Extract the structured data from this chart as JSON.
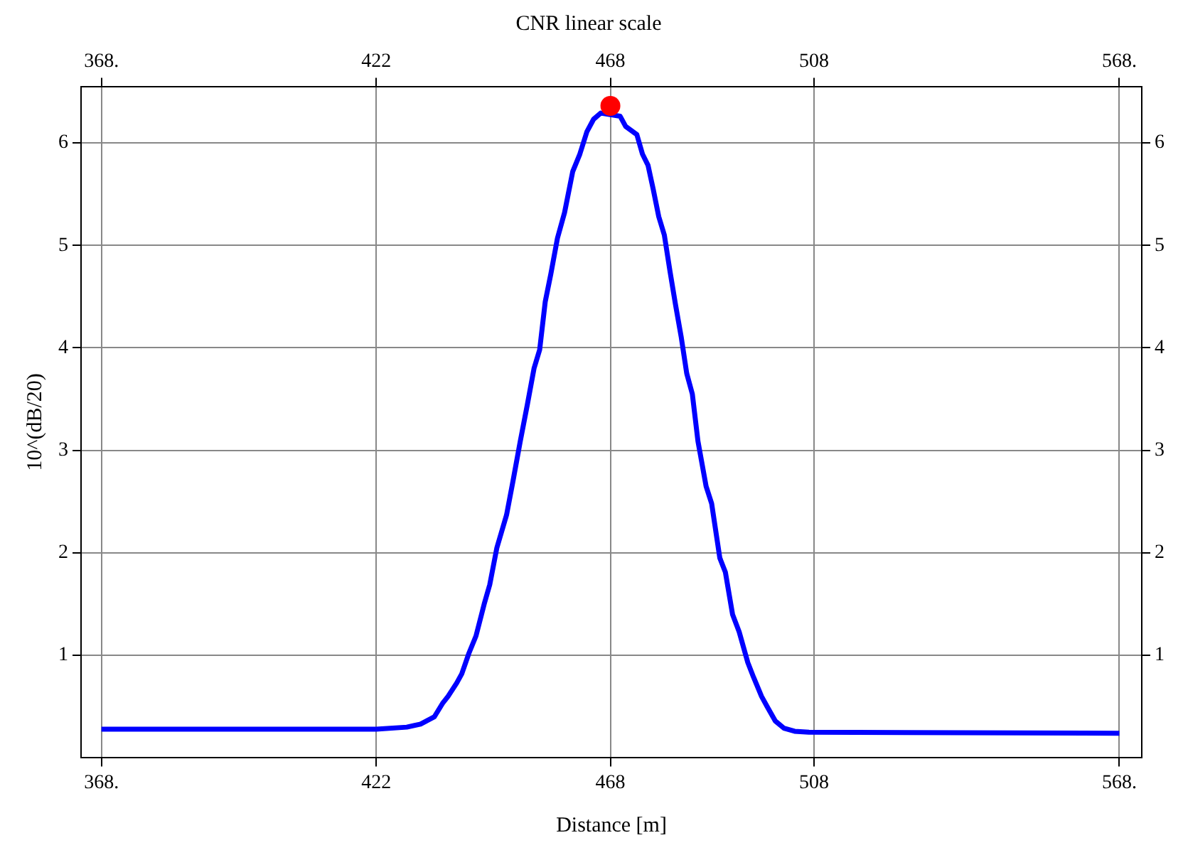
{
  "chart_data": {
    "type": "line",
    "title": "CNR linear scale",
    "xlabel": "Distance [m]",
    "ylabel": "10^(dB/20)",
    "xlim": [
      364,
      572.4
    ],
    "xticks": [
      {
        "value": 368,
        "label": "368."
      },
      422,
      468,
      508,
      {
        "value": 568,
        "label": "568."
      }
    ],
    "x2lim": [
      364,
      572.4
    ],
    "x2ticks": [
      {
        "value": 368,
        "label": "368."
      },
      422,
      468,
      508,
      {
        "value": 568,
        "label": "568."
      }
    ],
    "ylim": [
      0,
      6.55
    ],
    "yticks": [
      1,
      2,
      3,
      4,
      5,
      6
    ],
    "y2lim": [
      0,
      6.55
    ],
    "y2ticks": [
      1,
      2,
      3,
      4,
      5,
      6
    ],
    "grid": true,
    "legend": false,
    "marker": "none",
    "line_style": "solid",
    "series": [
      {
        "type": "line",
        "color": "#0000ff",
        "x": [
          368,
          422,
          428,
          430.7,
          433.4,
          435,
          436.1,
          437.8,
          438.8,
          440.2,
          441.6,
          443.2,
          444.3,
          445.7,
          447.6,
          448.9,
          450.3,
          451.7,
          453,
          454.1,
          455.2,
          456.3,
          457.6,
          459,
          460.6,
          462,
          463.4,
          464.7,
          466.1,
          468,
          469.9,
          471,
          473.2,
          474.3,
          475.4,
          476.4,
          477.5,
          478.6,
          479.7,
          480.8,
          481.9,
          483,
          484.1,
          485.2,
          486.8,
          487.9,
          489.5,
          490.6,
          492,
          493.3,
          495,
          496.1,
          497.7,
          498.8,
          500.4,
          502.1,
          504.2,
          507,
          568
        ],
        "values": [
          0.28,
          0.28,
          0.3,
          0.33,
          0.4,
          0.53,
          0.6,
          0.73,
          0.82,
          1.02,
          1.19,
          1.5,
          1.69,
          2.05,
          2.37,
          2.71,
          3.09,
          3.45,
          3.8,
          3.98,
          4.45,
          4.72,
          5.07,
          5.32,
          5.72,
          5.89,
          6.11,
          6.23,
          6.29,
          null,
          6.26,
          6.16,
          6.08,
          5.89,
          5.78,
          5.55,
          5.28,
          5.1,
          4.75,
          4.42,
          4.11,
          3.75,
          3.55,
          3.09,
          2.65,
          2.48,
          1.95,
          1.81,
          1.4,
          1.23,
          0.93,
          0.79,
          0.6,
          0.5,
          0.36,
          0.29,
          0.26,
          0.25,
          0.24
        ]
      },
      {
        "type": "scatter",
        "color": "#ff0000",
        "marker": "circle",
        "x": [
          468
        ],
        "values": [
          6.36
        ]
      }
    ]
  }
}
